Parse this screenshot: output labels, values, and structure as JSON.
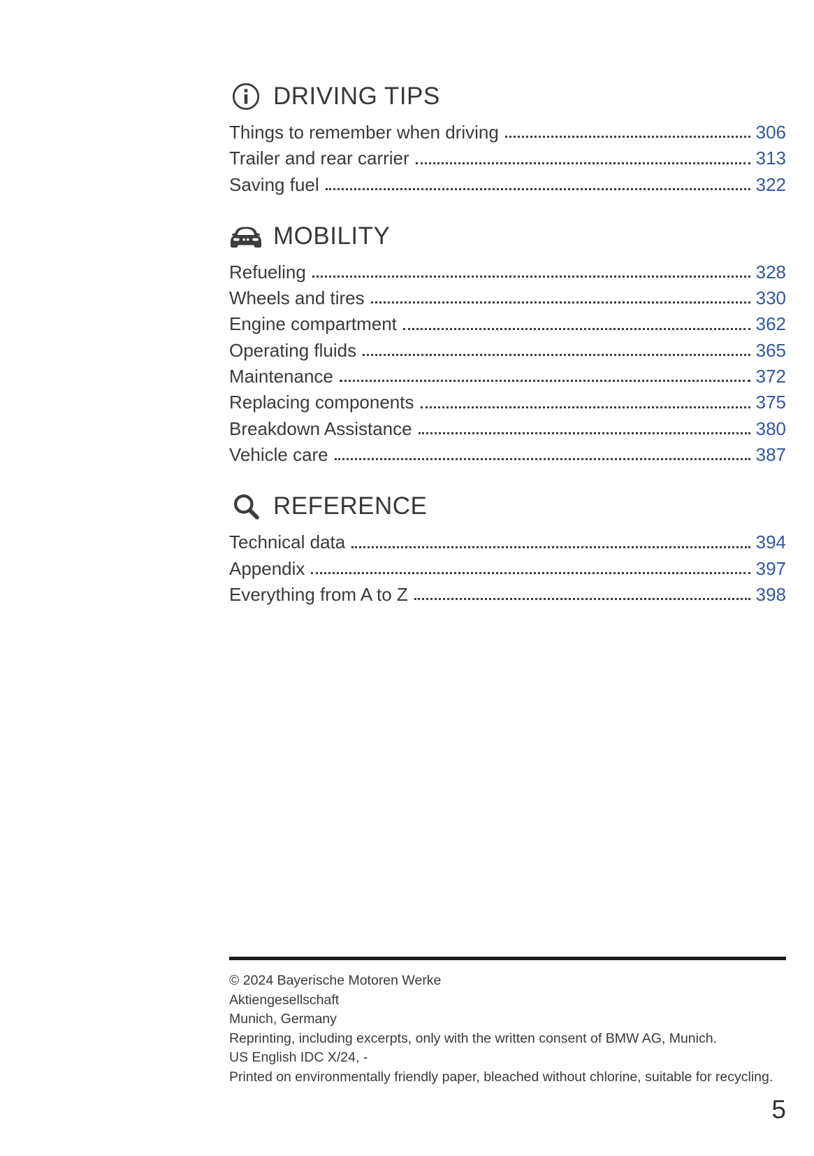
{
  "page": {
    "number": "5"
  },
  "colors": {
    "accent_blue": "#34589d",
    "body_text": "#3a3a3a",
    "rule_black": "#1a1a1a"
  },
  "sections": [
    {
      "icon": "info-icon",
      "title": "DRIVING TIPS",
      "entries": [
        {
          "label": "Things to remember when driving",
          "page": "306"
        },
        {
          "label": "Trailer and rear carrier",
          "page": "313"
        },
        {
          "label": "Saving fuel",
          "page": "322"
        }
      ]
    },
    {
      "icon": "car-icon",
      "title": "MOBILITY",
      "entries": [
        {
          "label": "Refueling",
          "page": "328"
        },
        {
          "label": "Wheels and tires",
          "page": "330"
        },
        {
          "label": "Engine compartment",
          "page": "362"
        },
        {
          "label": "Operating fluids",
          "page": "365"
        },
        {
          "label": "Maintenance",
          "page": "372"
        },
        {
          "label": "Replacing components",
          "page": "375"
        },
        {
          "label": "Breakdown Assistance",
          "page": "380"
        },
        {
          "label": "Vehicle care",
          "page": "387"
        }
      ]
    },
    {
      "icon": "search-icon",
      "title": "REFERENCE",
      "entries": [
        {
          "label": "Technical data",
          "page": "394"
        },
        {
          "label": "Appendix",
          "page": "397"
        },
        {
          "label": "Everything from A to Z",
          "page": "398"
        }
      ]
    }
  ],
  "footer": {
    "lines": [
      "© 2024 Bayerische Motoren Werke",
      "Aktiengesellschaft",
      "Munich, Germany",
      "Reprinting, including excerpts, only with the written consent of BMW AG, Munich.",
      "US English IDC X/24, -",
      "Printed on environmentally friendly paper, bleached without chlorine, suitable for recycling."
    ]
  }
}
